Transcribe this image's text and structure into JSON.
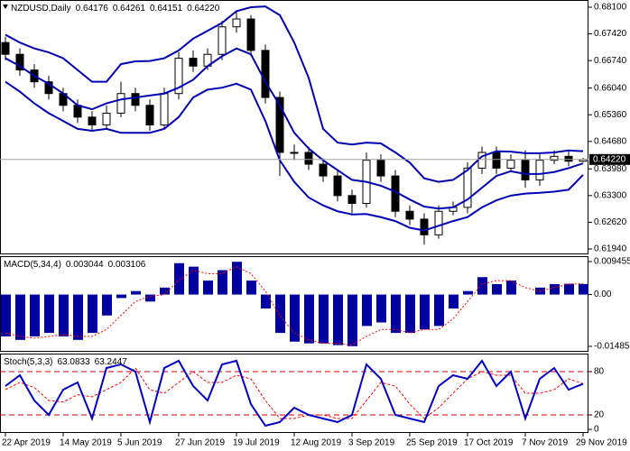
{
  "chart_data": [
    {
      "type": "candlestick",
      "title": "NZDUSD,Daily",
      "open": [
        0.672,
        0.669,
        0.665,
        0.662,
        0.659,
        0.656,
        0.653,
        0.651,
        0.654,
        0.659,
        0.656,
        0.651,
        0.659,
        0.668,
        0.666,
        0.669,
        0.676,
        0.678,
        0.67,
        0.658,
        0.644,
        0.644,
        0.641,
        0.638,
        0.633,
        0.631,
        0.642,
        0.638,
        0.629,
        0.627,
        0.623,
        0.629,
        0.63,
        0.64,
        0.644,
        0.64,
        0.642,
        0.637,
        0.642,
        0.643,
        0.64176
      ],
      "high": [
        0.6735,
        0.6705,
        0.6665,
        0.6635,
        0.6605,
        0.6575,
        0.6545,
        0.656,
        0.662,
        0.6605,
        0.6575,
        0.6605,
        0.6695,
        0.67,
        0.6705,
        0.6775,
        0.68,
        0.679,
        0.6715,
        0.6595,
        0.646,
        0.6455,
        0.6425,
        0.6395,
        0.6345,
        0.644,
        0.6435,
        0.6395,
        0.6305,
        0.6285,
        0.6305,
        0.6315,
        0.6415,
        0.6455,
        0.6455,
        0.6435,
        0.6445,
        0.6435,
        0.6445,
        0.6445,
        0.64261
      ],
      "low": [
        0.6675,
        0.6635,
        0.6605,
        0.6575,
        0.6545,
        0.6515,
        0.6495,
        0.65,
        0.653,
        0.6545,
        0.6495,
        0.65,
        0.6575,
        0.6645,
        0.665,
        0.6675,
        0.6745,
        0.6685,
        0.6565,
        0.638,
        0.642,
        0.6395,
        0.6365,
        0.6315,
        0.6285,
        0.63,
        0.6365,
        0.6275,
        0.6255,
        0.6205,
        0.622,
        0.628,
        0.6285,
        0.6385,
        0.6385,
        0.639,
        0.635,
        0.6355,
        0.641,
        0.6405,
        0.64151
      ],
      "close": [
        0.669,
        0.665,
        0.662,
        0.659,
        0.656,
        0.653,
        0.651,
        0.654,
        0.659,
        0.656,
        0.651,
        0.659,
        0.668,
        0.666,
        0.669,
        0.676,
        0.678,
        0.67,
        0.658,
        0.644,
        0.644,
        0.641,
        0.638,
        0.633,
        0.631,
        0.642,
        0.638,
        0.629,
        0.627,
        0.623,
        0.629,
        0.63,
        0.64,
        0.644,
        0.64,
        0.642,
        0.637,
        0.642,
        0.643,
        0.64176,
        0.6422
      ],
      "up_color": "#ffffff",
      "down_color": "#000000",
      "last_price": {
        "value": 0.6422,
        "label": "0.64220"
      },
      "bands": {
        "color": "#0000b4",
        "upper": [
          0.674,
          0.672,
          0.6705,
          0.6695,
          0.668,
          0.665,
          0.662,
          0.662,
          0.6665,
          0.6672,
          0.6673,
          0.668,
          0.67,
          0.673,
          0.675,
          0.677,
          0.68,
          0.681,
          0.6812,
          0.679,
          0.672,
          0.663,
          0.65,
          0.6465,
          0.646,
          0.6465,
          0.6463,
          0.644,
          0.6414,
          0.6374,
          0.6365,
          0.637,
          0.6395,
          0.643,
          0.6443,
          0.6442,
          0.6438,
          0.6438,
          0.644,
          0.6445,
          0.6443
        ],
        "middle": [
          0.668,
          0.666,
          0.6635,
          0.6615,
          0.659,
          0.656,
          0.655,
          0.6565,
          0.6575,
          0.658,
          0.6585,
          0.659,
          0.6605,
          0.6625,
          0.666,
          0.6685,
          0.6705,
          0.669,
          0.662,
          0.656,
          0.649,
          0.645,
          0.642,
          0.6395,
          0.637,
          0.6365,
          0.6355,
          0.634,
          0.632,
          0.6302,
          0.6297,
          0.63,
          0.632,
          0.635,
          0.638,
          0.6392,
          0.6385,
          0.6385,
          0.639,
          0.64,
          0.6412
        ],
        "lower": [
          0.662,
          0.6595,
          0.6565,
          0.654,
          0.652,
          0.65,
          0.6495,
          0.65,
          0.649,
          0.649,
          0.649,
          0.65,
          0.653,
          0.658,
          0.66,
          0.6605,
          0.6615,
          0.66,
          0.652,
          0.642,
          0.6365,
          0.6325,
          0.6305,
          0.629,
          0.6282,
          0.6283,
          0.6275,
          0.6265,
          0.6248,
          0.6241,
          0.6253,
          0.6265,
          0.6275,
          0.63,
          0.6318,
          0.633,
          0.6335,
          0.6337,
          0.634,
          0.6345,
          0.6383
        ]
      },
      "ylim": [
        0.61802,
        0.68284
      ],
      "yticks": [
        {
          "value": 0.681,
          "label": "0.68100"
        },
        {
          "value": 0.6742,
          "label": "0.67420"
        },
        {
          "value": 0.6674,
          "label": "0.66740"
        },
        {
          "value": 0.6604,
          "label": "0.66040"
        },
        {
          "value": 0.6536,
          "label": "0.65360"
        },
        {
          "value": 0.6468,
          "label": "0.64680"
        },
        {
          "value": 0.6398,
          "label": "0.63980"
        },
        {
          "value": 0.633,
          "label": "0.63300"
        },
        {
          "value": 0.6262,
          "label": "0.62620"
        },
        {
          "value": 0.6194,
          "label": "0.61940"
        }
      ]
    },
    {
      "type": "macd",
      "title": "MACD(5,34,4)",
      "histogram": {
        "color": "#0000a0",
        "values": [
          -0.012,
          -0.013,
          -0.012,
          -0.011,
          -0.012,
          -0.013,
          -0.011,
          -0.006,
          -0.001,
          0.001,
          -0.002,
          0.002,
          0.009,
          0.008,
          0.004,
          0.007,
          0.0094,
          0.004,
          -0.004,
          -0.011,
          -0.0135,
          -0.014,
          -0.014,
          -0.0145,
          -0.0148,
          -0.009,
          -0.008,
          -0.011,
          -0.011,
          -0.01,
          -0.009,
          -0.004,
          0.001,
          0.005,
          0.003,
          0.004,
          0.0,
          0.002,
          0.003,
          0.0031,
          0.003044
        ]
      },
      "signal": {
        "color": "#ff0000",
        "values": [
          -0.011,
          -0.012,
          -0.0125,
          -0.012,
          -0.0115,
          -0.012,
          -0.012,
          -0.01,
          -0.006,
          -0.002,
          -0.0005,
          0.0,
          0.004,
          0.007,
          0.006,
          0.006,
          0.008,
          0.006,
          0.001,
          -0.006,
          -0.011,
          -0.013,
          -0.014,
          -0.014,
          -0.0145,
          -0.012,
          -0.01,
          -0.01,
          -0.011,
          -0.01,
          -0.01,
          -0.007,
          -0.002,
          0.003,
          0.004,
          0.004,
          0.002,
          0.001,
          0.002,
          0.003,
          0.003106
        ]
      },
      "ylim": [
        -0.01641,
        0.01101
      ],
      "yticks": [
        0.009455,
        {
          "value": 0,
          "label": "0.00"
        },
        -0.014855
      ]
    },
    {
      "type": "stochastic",
      "title": "Stoch(5,3,3)",
      "main": {
        "color": "#0000c8",
        "values": [
          60,
          75,
          40,
          20,
          55,
          65,
          15,
          85,
          90,
          80,
          10,
          85,
          95,
          60,
          40,
          90,
          95,
          35,
          5,
          10,
          30,
          20,
          15,
          10,
          20,
          90,
          70,
          20,
          15,
          10,
          60,
          75,
          70,
          95,
          60,
          80,
          15,
          70,
          85,
          55,
          63.0833
        ]
      },
      "signal": {
        "color": "#ff0000",
        "values": [
          55,
          65,
          58,
          40,
          38,
          48,
          45,
          55,
          65,
          85,
          55,
          50,
          65,
          80,
          65,
          65,
          75,
          70,
          40,
          15,
          15,
          20,
          20,
          15,
          15,
          40,
          65,
          60,
          35,
          15,
          30,
          50,
          70,
          80,
          75,
          75,
          50,
          50,
          55,
          70,
          63.2447
        ]
      },
      "levels": [
        80,
        20
      ],
      "level_color": "#c80000",
      "ylim": [
        -5,
        105
      ],
      "yticks": [
        80,
        20,
        0
      ],
      "xticks": [
        {
          "value": 0,
          "label": "22 Apr 2019"
        },
        {
          "value": 4,
          "label": "14 May 2019"
        },
        {
          "value": 8,
          "label": "5 Jun 2019"
        },
        {
          "value": 12,
          "label": "27 Jun 2019"
        },
        {
          "value": 16,
          "label": "19 Jul 2019"
        },
        {
          "value": 20,
          "label": "12 Aug 2019"
        },
        {
          "value": 24,
          "label": "3 Sep 2019"
        },
        {
          "value": 28,
          "label": "25 Sep 2019"
        },
        {
          "value": 32,
          "label": "17 Oct 2019"
        },
        {
          "value": 36,
          "label": "7 Nov 2019"
        },
        {
          "value": 40,
          "label": "29 Nov 2019"
        }
      ]
    }
  ]
}
